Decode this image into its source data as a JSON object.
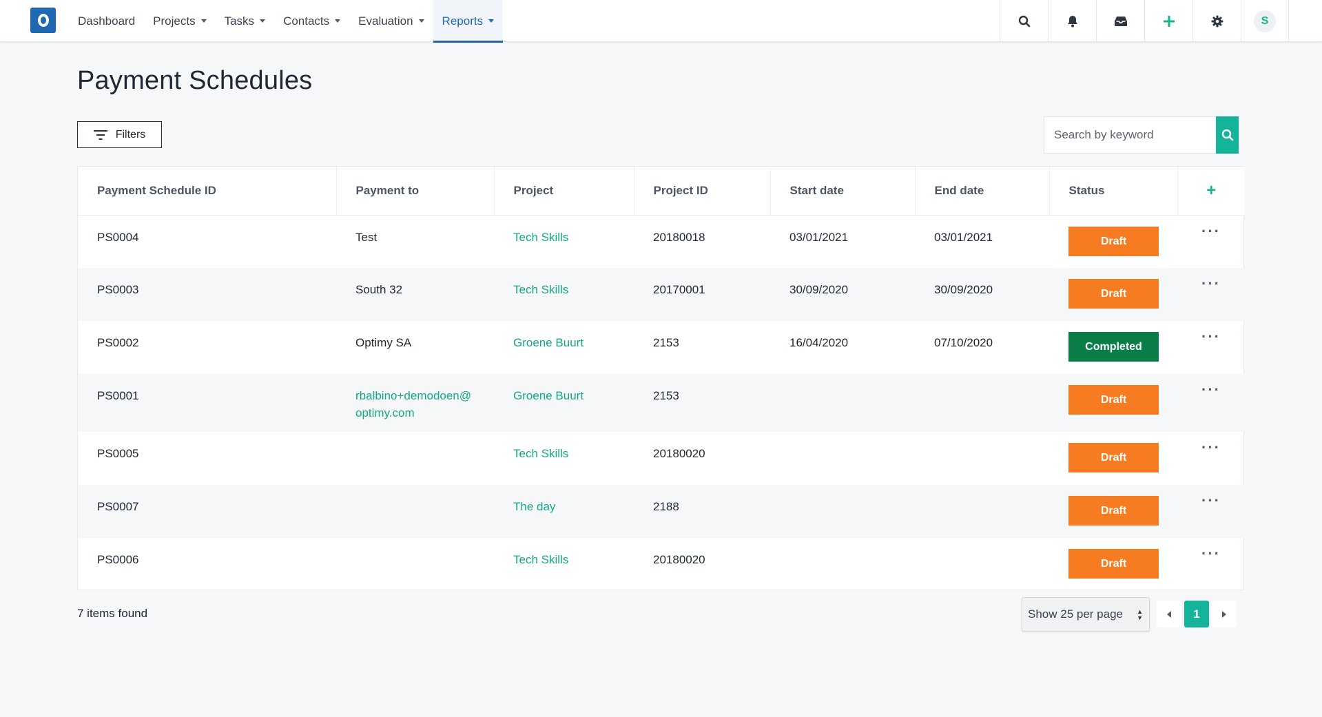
{
  "nav": {
    "items": [
      {
        "label": "Dashboard",
        "caret": false
      },
      {
        "label": "Projects",
        "caret": true
      },
      {
        "label": "Tasks",
        "caret": true
      },
      {
        "label": "Contacts",
        "caret": true
      },
      {
        "label": "Evaluation",
        "caret": true
      },
      {
        "label": "Reports",
        "caret": true,
        "active": true
      }
    ],
    "icons": [
      "search-icon",
      "bell-icon",
      "inbox-icon",
      "plus-icon",
      "gear-icon"
    ],
    "avatar_initial": "S"
  },
  "page": {
    "title": "Payment Schedules",
    "filters_label": "Filters",
    "search_placeholder": "Search by keyword"
  },
  "table": {
    "headers": [
      "Payment Schedule ID",
      "Payment to",
      "Project",
      "Project ID",
      "Start date",
      "End date",
      "Status"
    ],
    "rows": [
      {
        "id": "PS0004",
        "payment_to": "Test",
        "project": "Tech Skills",
        "project_id": "20180018",
        "start": "03/01/2021",
        "end": "03/01/2021",
        "status": "Draft"
      },
      {
        "id": "PS0003",
        "payment_to": "South 32",
        "project": "Tech Skills",
        "project_id": "20170001",
        "start": "30/09/2020",
        "end": "30/09/2020",
        "status": "Draft"
      },
      {
        "id": "PS0002",
        "payment_to": "Optimy SA",
        "project": "Groene Buurt",
        "project_id": "2153",
        "start": "16/04/2020",
        "end": "07/10/2020",
        "status": "Completed"
      },
      {
        "id": "PS0001",
        "payment_to": "rbalbino+demodoen@\noptimy.com",
        "payment_to_is_link": true,
        "project": "Groene Buurt",
        "project_id": "2153",
        "start": "",
        "end": "",
        "status": "Draft"
      },
      {
        "id": "PS0005",
        "payment_to": "",
        "project": "Tech Skills",
        "project_id": "20180020",
        "start": "",
        "end": "",
        "status": "Draft"
      },
      {
        "id": "PS0007",
        "payment_to": "",
        "project": "The day",
        "project_id": "2188",
        "start": "",
        "end": "",
        "status": "Draft"
      },
      {
        "id": "PS0006",
        "payment_to": "",
        "project": "Tech Skills",
        "project_id": "20180020",
        "start": "",
        "end": "",
        "status": "Draft"
      }
    ]
  },
  "footer": {
    "items_found": "7 items found",
    "per_page": "Show 25 per page",
    "current_page": "1"
  },
  "colors": {
    "accent": "#14b49a",
    "brand": "#1f69b3",
    "draft": "#f77b21",
    "completed": "#0a7d49"
  }
}
